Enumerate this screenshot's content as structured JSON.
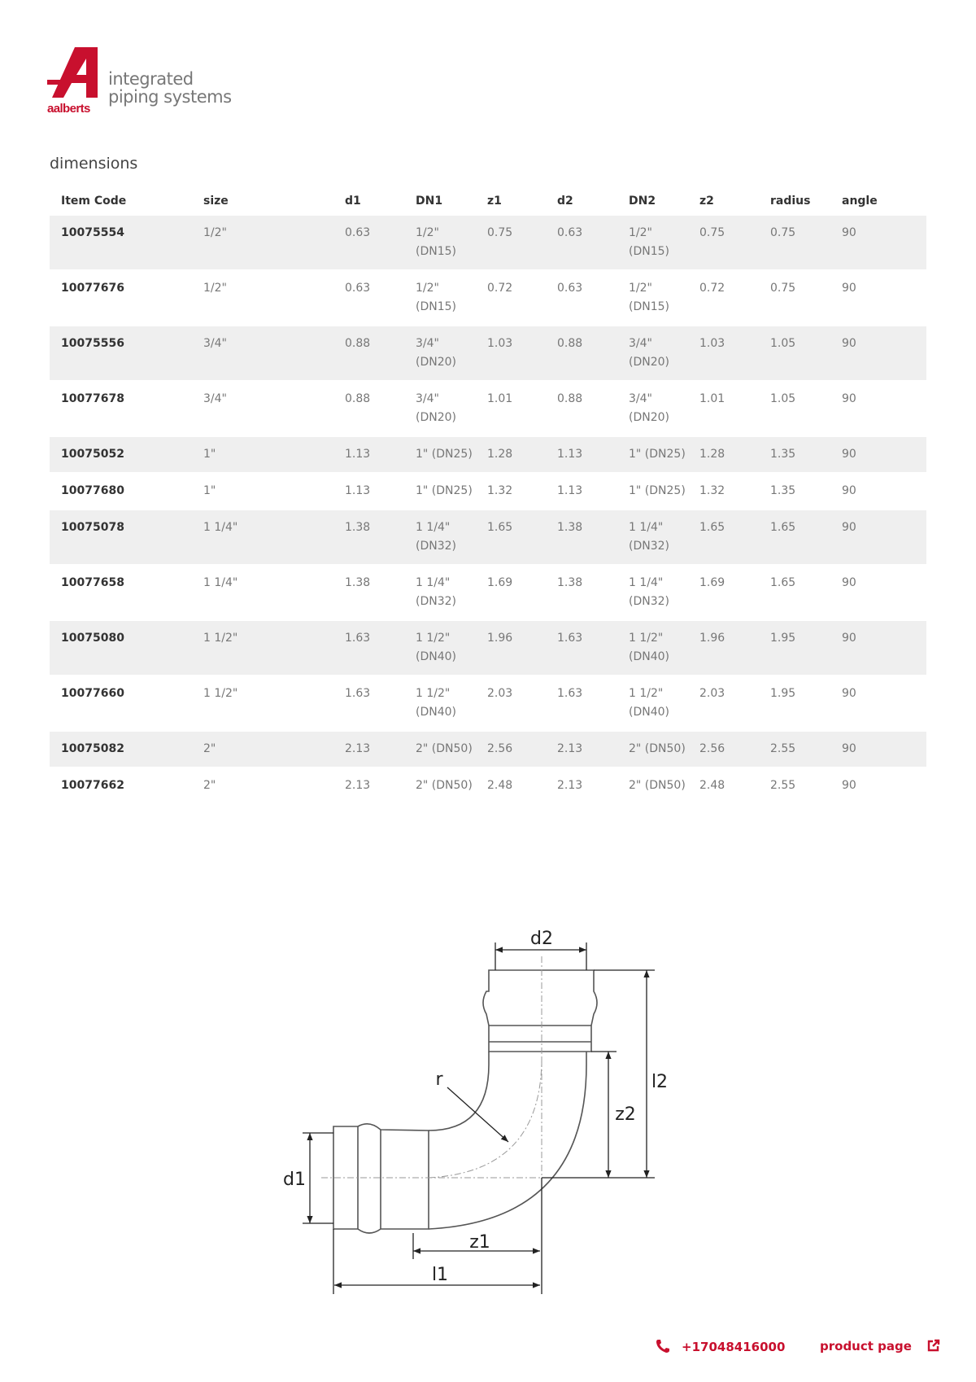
{
  "brand": {
    "logo_text": "aalberts",
    "tagline_line1": "integrated",
    "tagline_line2": "piping systems",
    "accent_color": "#c8102e"
  },
  "section_title": "dimensions",
  "table": {
    "headers": [
      "item code",
      "size",
      "d1",
      "DN1",
      "z1",
      "d2",
      "DN2",
      "z2",
      "radius",
      "angle"
    ],
    "rows": [
      [
        "10075554",
        "1/2\"",
        "0.63",
        "1/2\" (DN15)",
        "0.75",
        "0.63",
        "1/2\" (DN15)",
        "0.75",
        "0.75",
        "90"
      ],
      [
        "10077676",
        "1/2\"",
        "0.63",
        "1/2\" (DN15)",
        "0.72",
        "0.63",
        "1/2\" (DN15)",
        "0.72",
        "0.75",
        "90"
      ],
      [
        "10075556",
        "3/4\"",
        "0.88",
        "3/4\" (DN20)",
        "1.03",
        "0.88",
        "3/4\" (DN20)",
        "1.03",
        "1.05",
        "90"
      ],
      [
        "10077678",
        "3/4\"",
        "0.88",
        "3/4\" (DN20)",
        "1.01",
        "0.88",
        "3/4\" (DN20)",
        "1.01",
        "1.05",
        "90"
      ],
      [
        "10075052",
        "1\"",
        "1.13",
        "1\" (DN25)",
        "1.28",
        "1.13",
        "1\" (DN25)",
        "1.28",
        "1.35",
        "90"
      ],
      [
        "10077680",
        "1\"",
        "1.13",
        "1\" (DN25)",
        "1.32",
        "1.13",
        "1\" (DN25)",
        "1.32",
        "1.35",
        "90"
      ],
      [
        "10075078",
        "1 1/4\"",
        "1.38",
        "1 1/4\" (DN32)",
        "1.65",
        "1.38",
        "1 1/4\" (DN32)",
        "1.65",
        "1.65",
        "90"
      ],
      [
        "10077658",
        "1 1/4\"",
        "1.38",
        "1 1/4\" (DN32)",
        "1.69",
        "1.38",
        "1 1/4\" (DN32)",
        "1.69",
        "1.65",
        "90"
      ],
      [
        "10075080",
        "1 1/2\"",
        "1.63",
        "1 1/2\" (DN40)",
        "1.96",
        "1.63",
        "1 1/2\" (DN40)",
        "1.96",
        "1.95",
        "90"
      ],
      [
        "10077660",
        "1 1/2\"",
        "1.63",
        "1 1/2\" (DN40)",
        "2.03",
        "1.63",
        "1 1/2\" (DN40)",
        "2.03",
        "1.95",
        "90"
      ],
      [
        "10075082",
        "2\"",
        "2.13",
        "2\" (DN50)",
        "2.56",
        "2.13",
        "2\" (DN50)",
        "2.56",
        "2.55",
        "90"
      ],
      [
        "10077662",
        "2\"",
        "2.13",
        "2\" (DN50)",
        "2.48",
        "2.13",
        "2\" (DN50)",
        "2.48",
        "2.55",
        "90"
      ]
    ]
  },
  "diagram": {
    "labels": {
      "d2": "d2",
      "l2": "l2",
      "z2": "z2",
      "r": "r",
      "d1": "d1",
      "z1": "z1",
      "l1": "l1"
    }
  },
  "footer": {
    "phone": "+17048416000",
    "product_page": "product page",
    "phone_icon": "phone-icon",
    "link_icon": "external-link-icon"
  }
}
